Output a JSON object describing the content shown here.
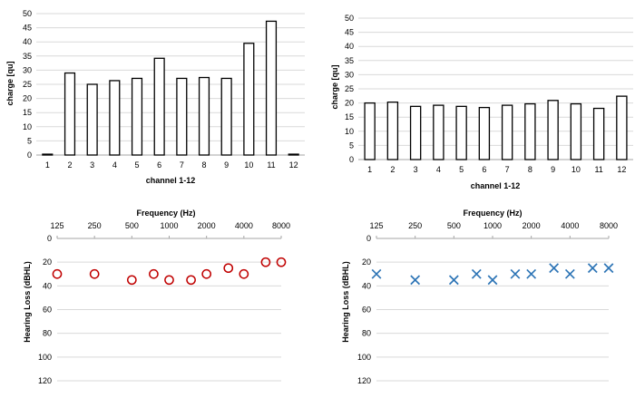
{
  "chart_data": [
    {
      "type": "bar",
      "xlabel": "channel 1-12",
      "ylabel": "charge [qu]",
      "ylim": [
        0,
        50
      ],
      "yticks": [
        0,
        5,
        10,
        15,
        20,
        25,
        30,
        35,
        40,
        45,
        50
      ],
      "categories": [
        "1",
        "2",
        "3",
        "4",
        "5",
        "6",
        "7",
        "8",
        "9",
        "10",
        "11",
        "12"
      ],
      "values": [
        0.3,
        29,
        25,
        26.3,
        27.1,
        34.2,
        27.1,
        27.4,
        27.1,
        39.5,
        47.3,
        0.3
      ],
      "grid": true,
      "bar_fill": "#ffffff",
      "bar_stroke": "#000000"
    },
    {
      "type": "bar",
      "xlabel": "channel 1-12",
      "ylabel": "charge [qu]",
      "ylim": [
        0,
        50
      ],
      "yticks": [
        0,
        5,
        10,
        15,
        20,
        25,
        30,
        35,
        40,
        45,
        50
      ],
      "categories": [
        "1",
        "2",
        "3",
        "4",
        "5",
        "6",
        "7",
        "8",
        "9",
        "10",
        "11",
        "12"
      ],
      "values": [
        20,
        20.3,
        18.8,
        19.2,
        18.8,
        18.4,
        19.2,
        19.7,
        20.9,
        19.7,
        18.1,
        22.4
      ],
      "grid": true,
      "bar_fill": "#ffffff",
      "bar_stroke": "#000000"
    },
    {
      "type": "scatter",
      "xlabel": "Frequency (Hz)",
      "ylabel": "Hearing Loss (dBHL)",
      "x_scale": "log",
      "xticks": [
        "125",
        "250",
        "500",
        "1000",
        "2000",
        "4000",
        "8000"
      ],
      "xtick_values": [
        125,
        250,
        500,
        1000,
        2000,
        4000,
        8000
      ],
      "ylim": [
        0,
        120
      ],
      "y_inverted": true,
      "yticks": [
        0,
        20,
        40,
        60,
        80,
        100,
        120
      ],
      "x": [
        125,
        250,
        500,
        750,
        1000,
        1500,
        2000,
        3000,
        4000,
        6000,
        8000
      ],
      "y": [
        30,
        30,
        35,
        30,
        35,
        35,
        30,
        25,
        30,
        20,
        20
      ],
      "marker": "circle",
      "color": "#c00000",
      "grid": true
    },
    {
      "type": "scatter",
      "xlabel": "Frequency (Hz)",
      "ylabel": "Hearing Loss (dBHL)",
      "x_scale": "log",
      "xticks": [
        "125",
        "250",
        "500",
        "1000",
        "2000",
        "4000",
        "8000"
      ],
      "xtick_values": [
        125,
        250,
        500,
        1000,
        2000,
        4000,
        8000
      ],
      "ylim": [
        0,
        120
      ],
      "y_inverted": true,
      "yticks": [
        0,
        20,
        40,
        60,
        80,
        100,
        120
      ],
      "x": [
        125,
        250,
        500,
        750,
        1000,
        1500,
        2000,
        3000,
        4000,
        6000,
        8000
      ],
      "y": [
        30,
        35,
        35,
        30,
        35,
        30,
        30,
        25,
        30,
        25,
        25
      ],
      "marker": "x",
      "color": "#2e75b6",
      "grid": true
    }
  ]
}
